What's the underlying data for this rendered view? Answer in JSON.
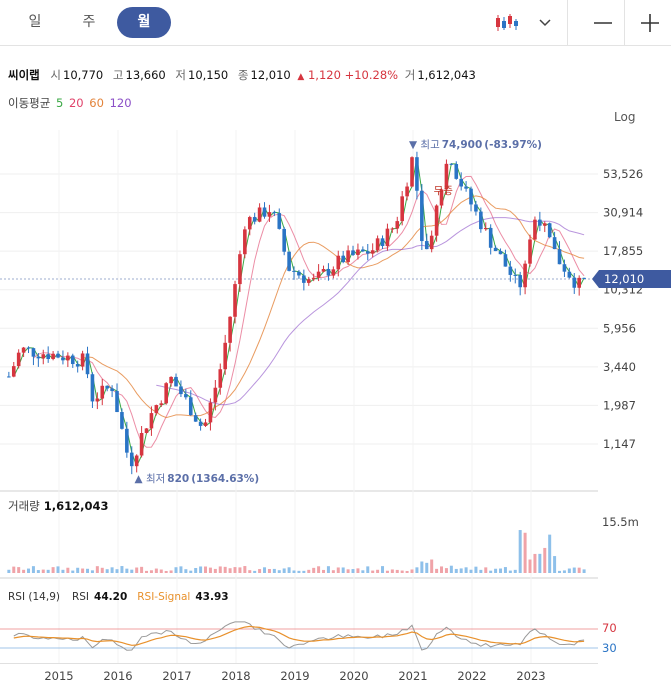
{
  "tabs": [
    {
      "label": "일",
      "active": false
    },
    {
      "label": "주",
      "active": false
    },
    {
      "label": "월",
      "active": true
    }
  ],
  "controls": {
    "chart_type_icon": "candlestick-icon",
    "dropdown_icon": "chevron-down-icon",
    "zoom_out_icon": "minus-icon",
    "zoom_in_icon": "plus-icon"
  },
  "stock": {
    "name": "씨이랩",
    "open_label": "시",
    "open": "10,770",
    "high_label": "고",
    "high": "13,660",
    "low_label": "저",
    "low": "10,150",
    "close_label": "종",
    "close": "12,010",
    "change": "1,120",
    "change_pct": "+10.28%",
    "volume_label": "거",
    "volume": "1,612,043"
  },
  "moving_average": {
    "label": "이동평균",
    "periods": [
      {
        "label": "5",
        "color": "#3aa845"
      },
      {
        "label": "20",
        "color": "#e0436a"
      },
      {
        "label": "60",
        "color": "#e3833a"
      },
      {
        "label": "120",
        "color": "#8b4fc7"
      }
    ]
  },
  "scale_toggle": "Log",
  "colors": {
    "up": "#d6353f",
    "down": "#2a74c5",
    "accent": "#3e5aa0",
    "rsi": "#999999",
    "rsi_signal": "#e8912c"
  },
  "chart_data": {
    "type": "candlestick",
    "scale": "log",
    "x_ticks": [
      "2015",
      "2016",
      "2017",
      "2018",
      "2019",
      "2020",
      "2021",
      "2022",
      "2023"
    ],
    "y_ticks": [
      "53,526",
      "30,914",
      "17,855",
      "10,312",
      "5,956",
      "3,440",
      "1,987",
      "1,147"
    ],
    "y_tick_values": [
      53526,
      30914,
      17855,
      10312,
      5956,
      3440,
      1987,
      1147
    ],
    "current_price": "12,010",
    "high_marker": {
      "label": "최고",
      "value": "74,900",
      "pct": "(-83.97%)"
    },
    "low_marker": {
      "label": "최저",
      "value": "820",
      "pct": "(1364.63%)"
    },
    "annotation": "무증",
    "price_series": [
      {
        "x": 2014.15,
        "close": 3000
      },
      {
        "x": 2014.35,
        "close": 4400
      },
      {
        "x": 2015.0,
        "close": 4050
      },
      {
        "x": 2015.45,
        "close": 3750
      },
      {
        "x": 2015.55,
        "close": 2200
      },
      {
        "x": 2015.9,
        "close": 2600
      },
      {
        "x": 2016.2,
        "close": 850
      },
      {
        "x": 2016.5,
        "close": 1600
      },
      {
        "x": 2016.9,
        "close": 2900
      },
      {
        "x": 2017.2,
        "close": 2000
      },
      {
        "x": 2017.45,
        "close": 1400
      },
      {
        "x": 2017.75,
        "close": 3500
      },
      {
        "x": 2017.95,
        "close": 9000
      },
      {
        "x": 2018.15,
        "close": 27000
      },
      {
        "x": 2018.6,
        "close": 33000
      },
      {
        "x": 2018.9,
        "close": 14000
      },
      {
        "x": 2019.3,
        "close": 11500
      },
      {
        "x": 2019.8,
        "close": 16000
      },
      {
        "x": 2020.3,
        "close": 18000
      },
      {
        "x": 2020.7,
        "close": 26000
      },
      {
        "x": 2021.0,
        "close": 70000
      },
      {
        "x": 2021.2,
        "close": 16000
      },
      {
        "x": 2021.6,
        "close": 70000
      },
      {
        "x": 2021.9,
        "close": 40000
      },
      {
        "x": 2022.3,
        "close": 21000
      },
      {
        "x": 2022.8,
        "close": 10500
      },
      {
        "x": 2023.1,
        "close": 32000
      },
      {
        "x": 2023.4,
        "close": 17000
      },
      {
        "x": 2023.8,
        "close": 11000
      },
      {
        "x": 2023.95,
        "close": 12010
      }
    ],
    "volume": {
      "label": "거래량",
      "value": "1,612,043",
      "axis_label": "15.5m"
    },
    "rsi": {
      "label": "RSI (14,9)",
      "rsi_label": "RSI",
      "rsi_value": "44.20",
      "signal_label": "RSI-Signal",
      "signal_value": "43.93",
      "levels": [
        "70",
        "30"
      ]
    }
  }
}
